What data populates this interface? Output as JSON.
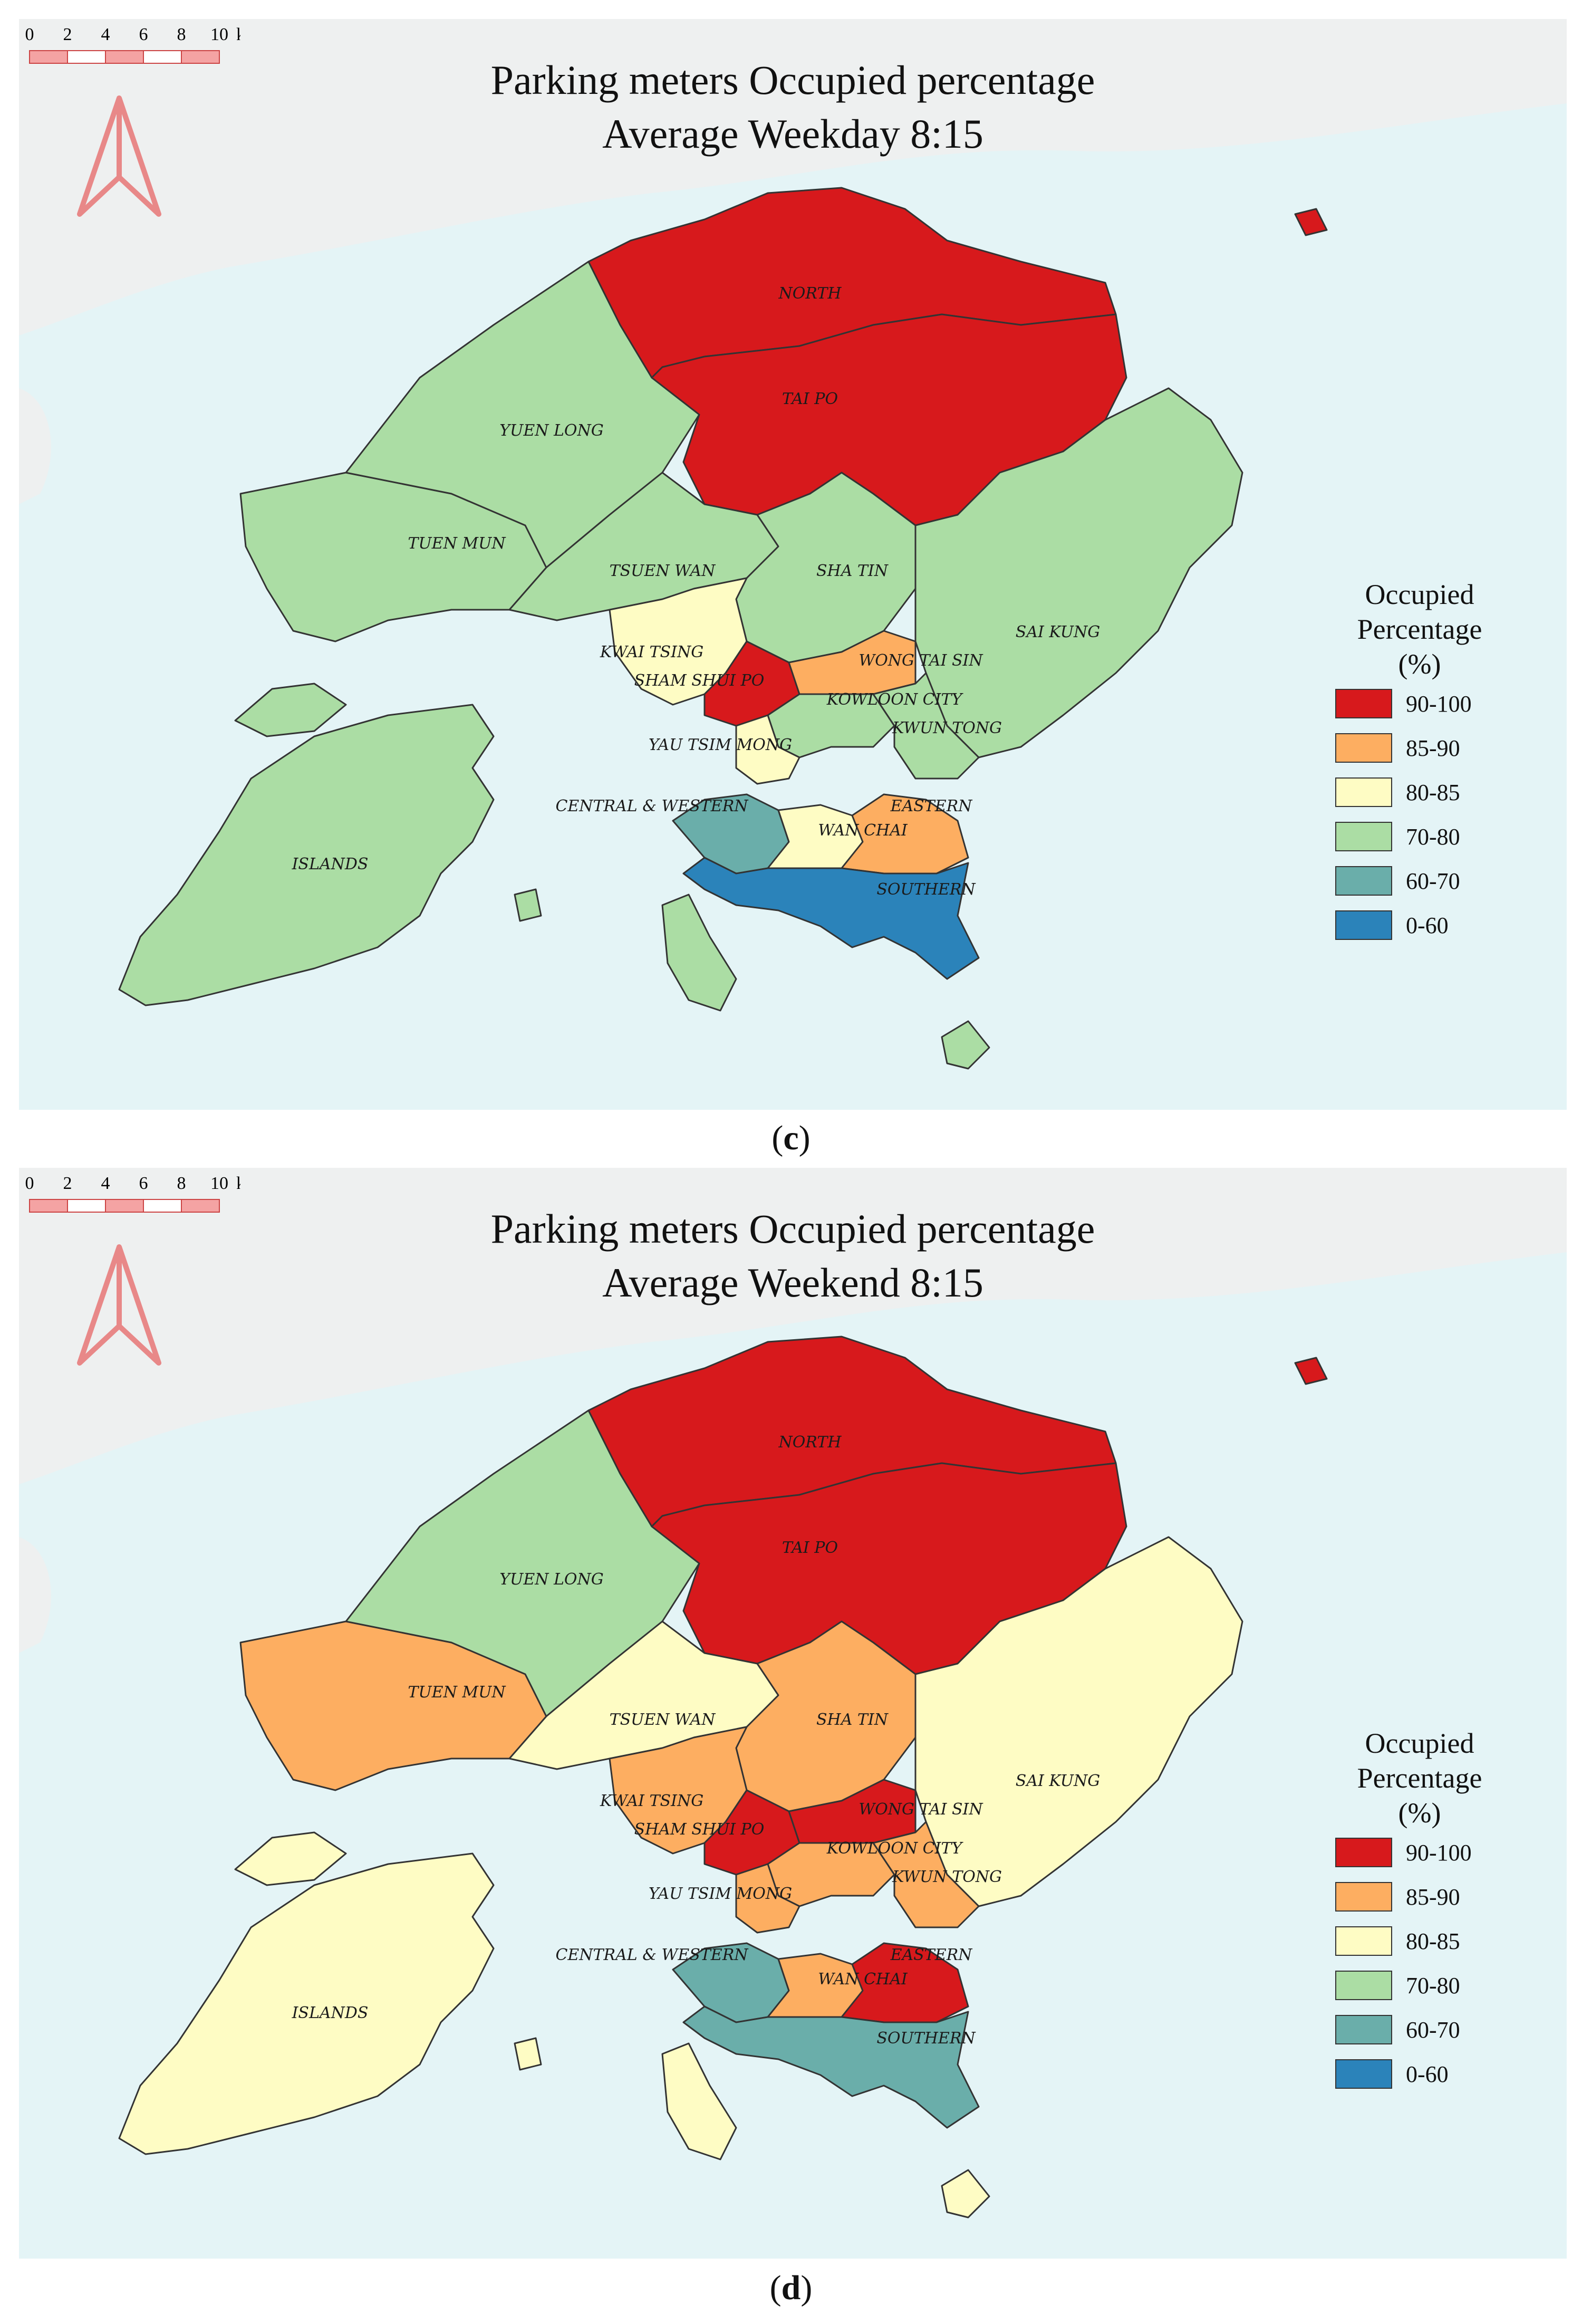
{
  "colors": {
    "sea": "#e4f4f6",
    "land": "#eef0f0",
    "north_arrow": "#e88888",
    "border": "#333333",
    "class_90_100": "#d7191c",
    "class_85_90": "#fdae61",
    "class_80_85": "#fefcc4",
    "class_70_80": "#abdda4",
    "class_60_70": "#6aaeaa",
    "class_0_60": "#2b83ba"
  },
  "legend": {
    "title_line1": "Occupied",
    "title_line2": "Percentage",
    "title_line3": "(%)",
    "classes": [
      {
        "label": "90-100",
        "color": "#d7191c"
      },
      {
        "label": "85-90",
        "color": "#fdae61"
      },
      {
        "label": "80-85",
        "color": "#fefcc4"
      },
      {
        "label": "70-80",
        "color": "#abdda4"
      },
      {
        "label": "60-70",
        "color": "#6aaeaa"
      },
      {
        "label": "0-60",
        "color": "#2b83ba"
      }
    ]
  },
  "scale_bar": {
    "ticks": [
      "0",
      "2",
      "4",
      "6",
      "8",
      "10"
    ],
    "unit": "km"
  },
  "district_names": {
    "north": "NORTH",
    "tai_po": "TAI PO",
    "yuen_long": "YUEN LONG",
    "tuen_mun": "TUEN MUN",
    "tsuen_wan": "TSUEN WAN",
    "sha_tin": "SHA TIN",
    "sai_kung": "SAI KUNG",
    "kwai_tsing": "KWAI TSING",
    "sham_shui_po": "SHAM SHUI PO",
    "wong_tai_sin": "WONG TAI SIN",
    "kowloon_city": "KOWLOON CITY",
    "kwun_tong": "KWUN TONG",
    "yau_tsim_mong": "YAU TSIM MONG",
    "central_western": "CENTRAL & WESTERN",
    "eastern": "EASTERN",
    "wan_chai": "WAN CHAI",
    "southern": "SOUTHERN",
    "islands": "ISLANDS"
  },
  "maps": [
    {
      "panel": "c",
      "caption_letter": "c",
      "title_line1": "Parking meters Occupied percentage",
      "title_line2": "Average Weekday 8:15",
      "district_class": {
        "north": "90-100",
        "tai_po": "90-100",
        "yuen_long": "70-80",
        "tuen_mun": "70-80",
        "tsuen_wan": "70-80",
        "sha_tin": "70-80",
        "sai_kung": "70-80",
        "kwai_tsing": "80-85",
        "sham_shui_po": "90-100",
        "wong_tai_sin": "85-90",
        "kowloon_city": "70-80",
        "kwun_tong": "70-80",
        "yau_tsim_mong": "80-85",
        "central_western": "60-70",
        "eastern": "85-90",
        "wan_chai": "80-85",
        "southern": "0-60",
        "islands": "70-80"
      }
    },
    {
      "panel": "d",
      "caption_letter": "d",
      "title_line1": "Parking meters Occupied percentage",
      "title_line2": "Average Weekend 8:15",
      "district_class": {
        "north": "90-100",
        "tai_po": "90-100",
        "yuen_long": "70-80",
        "tuen_mun": "85-90",
        "tsuen_wan": "80-85",
        "sha_tin": "85-90",
        "sai_kung": "80-85",
        "kwai_tsing": "85-90",
        "sham_shui_po": "90-100",
        "wong_tai_sin": "90-100",
        "kowloon_city": "85-90",
        "kwun_tong": "85-90",
        "yau_tsim_mong": "85-90",
        "central_western": "60-70",
        "eastern": "90-100",
        "wan_chai": "85-90",
        "southern": "60-70",
        "islands": "80-85"
      }
    }
  ]
}
